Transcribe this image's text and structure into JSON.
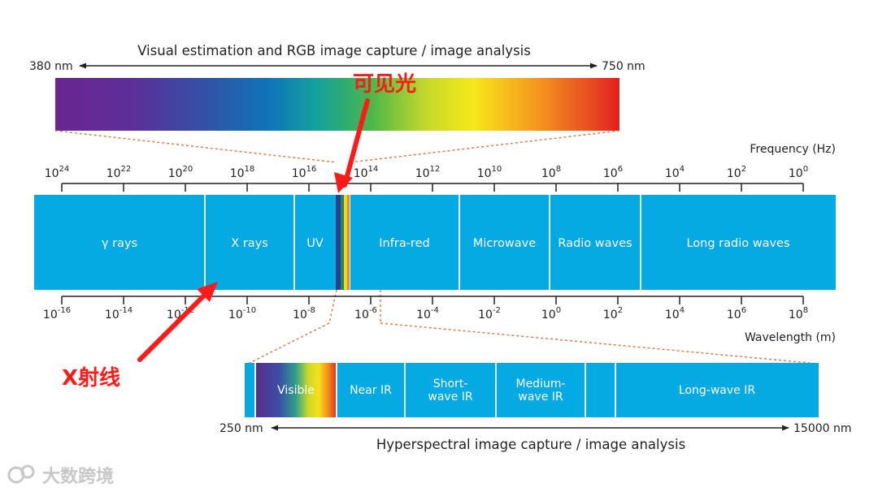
{
  "colors": {
    "band": "#05a9e4",
    "band_divider": "#e6f6fc",
    "axis": "#222222",
    "dotted": "#e07a4a",
    "arrow": "#ff1a1a",
    "watermark": "#c8c8c8"
  },
  "visible_bar": {
    "title": "Visual estimation and RGB image capture / image analysis",
    "left_label": "380 nm",
    "right_label": "750 nm"
  },
  "frequency_axis": {
    "label": "Frequency (Hz)",
    "ticks": [
      {
        "base": "10",
        "exp": "24"
      },
      {
        "base": "10",
        "exp": "22"
      },
      {
        "base": "10",
        "exp": "20"
      },
      {
        "base": "10",
        "exp": "18"
      },
      {
        "base": "10",
        "exp": "16"
      },
      {
        "base": "10",
        "exp": "14"
      },
      {
        "base": "10",
        "exp": "12"
      },
      {
        "base": "10",
        "exp": "10"
      },
      {
        "base": "10",
        "exp": "8"
      },
      {
        "base": "10",
        "exp": "6"
      },
      {
        "base": "10",
        "exp": "4"
      },
      {
        "base": "10",
        "exp": "2"
      },
      {
        "base": "10",
        "exp": "0"
      }
    ]
  },
  "wavelength_axis": {
    "label": "Wavelength (m)",
    "ticks": [
      {
        "base": "10",
        "exp": "-16"
      },
      {
        "base": "10",
        "exp": "-14"
      },
      {
        "base": "10",
        "exp": "-12"
      },
      {
        "base": "10",
        "exp": "-10"
      },
      {
        "base": "10",
        "exp": "-8"
      },
      {
        "base": "10",
        "exp": "-6"
      },
      {
        "base": "10",
        "exp": "-4"
      },
      {
        "base": "10",
        "exp": "-2"
      },
      {
        "base": "10",
        "exp": "0"
      },
      {
        "base": "10",
        "exp": "2"
      },
      {
        "base": "10",
        "exp": "4"
      },
      {
        "base": "10",
        "exp": "6"
      },
      {
        "base": "10",
        "exp": "8"
      }
    ]
  },
  "spectrum_bands": [
    "γ rays",
    "X rays",
    "UV",
    "Infra-red",
    "Microwave",
    "Radio waves",
    "Long radio waves"
  ],
  "hyperspectral": {
    "segments": [
      [
        "Visible"
      ],
      [
        "Near IR"
      ],
      [
        "Short-",
        "wave IR"
      ],
      [
        "Medium-",
        "wave IR"
      ],
      [
        ""
      ],
      [
        "Long-wave IR"
      ]
    ],
    "left_label": "250 nm",
    "right_label": "15000 nm",
    "caption": "Hyperspectral image capture / image analysis"
  },
  "annotations": {
    "visible_light": "可见光",
    "x_ray": "X射线"
  },
  "watermark": "大数跨境"
}
